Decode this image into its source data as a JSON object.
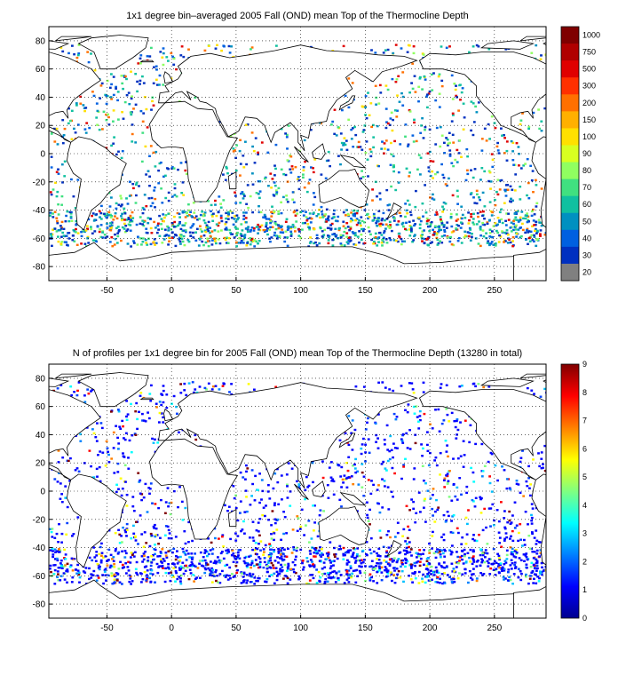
{
  "figure": {
    "top_panel": {
      "title": "1x1 degree bin–averaged 2005 Fall (OND) mean Top of the Thermocline Depth",
      "x_ticks": [
        "-50",
        "0",
        "50",
        "100",
        "150",
        "200",
        "250"
      ],
      "y_ticks": [
        "80",
        "60",
        "40",
        "20",
        "0",
        "-20",
        "-40",
        "-60",
        "-80"
      ],
      "colorbar_labels": [
        "1000",
        "750",
        "500",
        "300",
        "200",
        "150",
        "100",
        "90",
        "80",
        "70",
        "60",
        "50",
        "40",
        "30",
        "20"
      ],
      "colorbar_colors": [
        "#7f0000",
        "#b00000",
        "#e00000",
        "#ff3000",
        "#ff7000",
        "#ffb000",
        "#ffe000",
        "#d8ff20",
        "#90ff60",
        "#40e080",
        "#10c0a0",
        "#0090c0",
        "#0060e0",
        "#0030c0",
        "#808080"
      ]
    },
    "bottom_panel": {
      "title": "N of profiles per 1x1 degree bin for 2005 Fall (OND) mean Top of the Thermocline Depth  (13280 in total)",
      "x_ticks": [
        "-50",
        "0",
        "50",
        "100",
        "150",
        "200",
        "250"
      ],
      "y_ticks": [
        "80",
        "60",
        "40",
        "20",
        "0",
        "-20",
        "-40",
        "-60",
        "-80"
      ],
      "colorbar_labels": [
        "9",
        "8",
        "7",
        "6",
        "5",
        "4",
        "3",
        "2",
        "1",
        "0"
      ]
    }
  },
  "chart_data": [
    {
      "type": "heatmap",
      "title": "1x1 degree bin–averaged 2005 Fall (OND) mean Top of the Thermocline Depth",
      "xlim": [
        -95,
        290
      ],
      "ylim": [
        -90,
        90
      ],
      "grid": true,
      "colorbar_ticks": [
        20,
        30,
        40,
        50,
        60,
        70,
        80,
        90,
        100,
        150,
        200,
        300,
        500,
        750,
        1000
      ]
    },
    {
      "type": "heatmap",
      "title": "N of profiles per 1x1 degree bin for 2005 Fall (OND) mean Top of the Thermocline Depth  (13280 in total)",
      "xlim": [
        -95,
        290
      ],
      "ylim": [
        -90,
        90
      ],
      "grid": true,
      "colorbar_ticks": [
        0,
        1,
        2,
        3,
        4,
        5,
        6,
        7,
        8,
        9
      ],
      "total_profiles": 13280
    }
  ]
}
